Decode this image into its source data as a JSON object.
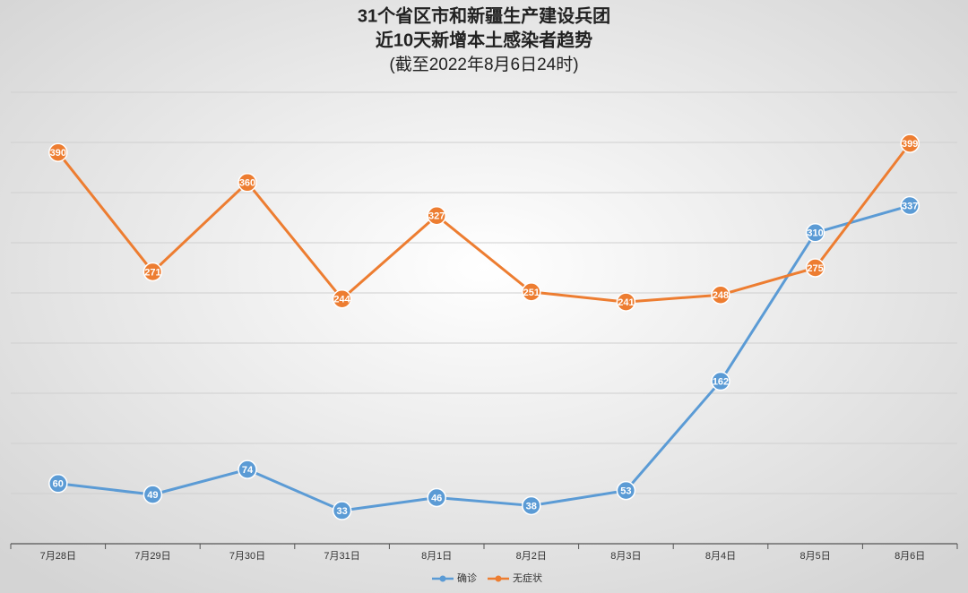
{
  "chart_data": {
    "type": "line",
    "title": [
      "31个省区市和新疆生产建设兵团",
      "近10天新增本土感染者趋势",
      "(截至2022年8月6日24时)"
    ],
    "categories": [
      "7月28日",
      "7月29日",
      "7月30日",
      "7月31日",
      "8月1日",
      "8月2日",
      "8月3日",
      "8月4日",
      "8月5日",
      "8月6日"
    ],
    "series": [
      {
        "name": "确诊",
        "color": "#5b9bd5",
        "values": [
          60,
          49,
          74,
          33,
          46,
          38,
          53,
          162,
          310,
          337
        ]
      },
      {
        "name": "无症状",
        "color": "#ed7d31",
        "values": [
          390,
          271,
          360,
          244,
          327,
          251,
          241,
          248,
          275,
          399
        ]
      }
    ],
    "ylim": [
      0,
      450
    ],
    "yticks": [
      0,
      50,
      100,
      150,
      200,
      250,
      300,
      350,
      400,
      450
    ],
    "grid": true,
    "legend": "bottom"
  }
}
